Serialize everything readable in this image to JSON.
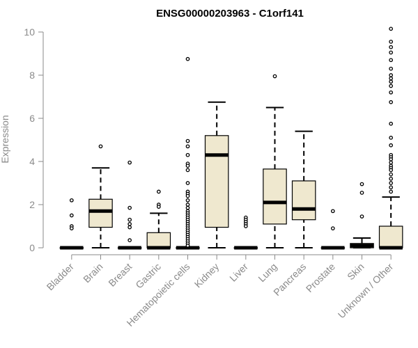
{
  "chart_data": {
    "type": "box",
    "title": "ENSG00000203963 - C1orf141",
    "xlabel": "",
    "ylabel": "Expression",
    "ylim": [
      0,
      10
    ],
    "yticks": [
      0,
      2,
      4,
      6,
      8,
      10
    ],
    "grid": false,
    "legend": "none",
    "categories": [
      "Bladder",
      "Brain",
      "Breast",
      "Gastric",
      "Hematopoietic cells",
      "Kidney",
      "Liver",
      "Lung",
      "Pancreas",
      "Prostate",
      "Skin",
      "Unknown / Other"
    ],
    "boxes": [
      {
        "category": "Bladder",
        "min": 0,
        "q1": 0,
        "median": 0,
        "q3": 0,
        "max": 0,
        "outliers": [
          2.2,
          1.5,
          1.0,
          0.9
        ]
      },
      {
        "category": "Brain",
        "min": 0,
        "q1": 0.95,
        "median": 1.7,
        "q3": 2.25,
        "max": 3.7,
        "outliers": [
          4.7
        ]
      },
      {
        "category": "Breast",
        "min": 0,
        "q1": 0,
        "median": 0,
        "q3": 0,
        "max": 0,
        "outliers": [
          3.95,
          1.85,
          1.3,
          1.1,
          0.95,
          0.35
        ]
      },
      {
        "category": "Gastric",
        "min": 0,
        "q1": 0,
        "median": 0,
        "q3": 0.7,
        "max": 1.6,
        "outliers": [
          2.6,
          2.0,
          1.9
        ]
      },
      {
        "category": "Hematopoietic cells",
        "min": 0,
        "q1": 0,
        "median": 0,
        "q3": 0,
        "max": 0,
        "outliers": [
          8.75,
          4.95,
          4.7,
          4.3,
          3.9,
          3.8,
          3.6,
          3.0,
          2.6,
          2.5,
          2.4,
          2.2,
          2.0,
          1.85,
          1.7,
          1.6,
          1.5,
          1.4,
          1.3,
          1.2,
          1.1,
          1.0,
          0.9,
          0.8,
          0.7,
          0.6,
          0.5,
          0.4,
          0.3,
          0.2,
          0.1
        ]
      },
      {
        "category": "Kidney",
        "min": 0,
        "q1": 0.95,
        "median": 4.3,
        "q3": 5.2,
        "max": 6.75,
        "outliers": []
      },
      {
        "category": "Liver",
        "min": 0,
        "q1": 0,
        "median": 0,
        "q3": 0,
        "max": 0,
        "outliers": [
          1.4,
          1.3,
          1.2,
          1.1,
          1.0
        ]
      },
      {
        "category": "Lung",
        "min": 0,
        "q1": 1.1,
        "median": 2.1,
        "q3": 3.65,
        "max": 6.5,
        "outliers": [
          7.95
        ]
      },
      {
        "category": "Pancreas",
        "min": 0,
        "q1": 1.3,
        "median": 1.8,
        "q3": 3.1,
        "max": 5.4,
        "outliers": []
      },
      {
        "category": "Prostate",
        "min": 0,
        "q1": 0,
        "median": 0,
        "q3": 0,
        "max": 0,
        "outliers": [
          1.7,
          0.9
        ]
      },
      {
        "category": "Skin",
        "min": 0,
        "q1": 0,
        "median": 0.1,
        "q3": 0.2,
        "max": 0.45,
        "outliers": [
          2.95,
          2.55,
          1.45
        ]
      },
      {
        "category": "Unknown / Other",
        "min": 0,
        "q1": 0,
        "median": 0,
        "q3": 1.0,
        "max": 2.35,
        "outliers": [
          10.15,
          9.55,
          9.3,
          9.05,
          8.7,
          8.3,
          8.0,
          7.85,
          7.7,
          7.5,
          7.2,
          6.75,
          5.75,
          5.1,
          4.75,
          4.3,
          4.2,
          4.1,
          3.95,
          3.8,
          3.7,
          3.6,
          3.4,
          3.2,
          3.0,
          2.8,
          2.6
        ]
      }
    ],
    "colors": {
      "box_fill": "#efe8cf",
      "box_stroke": "#000000",
      "axis": "#8a8a8a",
      "title": "#000000"
    }
  }
}
